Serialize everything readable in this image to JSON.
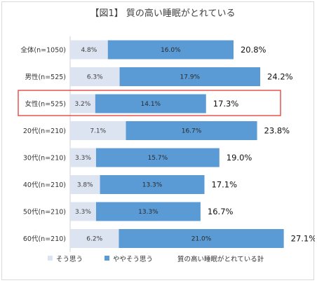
{
  "chart_data": {
    "type": "bar",
    "orientation": "horizontal",
    "stacked": true,
    "title": "【図1】 質の高い睡眠がとれている",
    "categories": [
      "全体(n=1050)",
      "男性(n=525)",
      "女性(n=525)",
      "20代(n=210)",
      "30代(n=210)",
      "40代(n=210)",
      "50代(n=210)",
      "60代(n=210)"
    ],
    "series": [
      {
        "name": "そう思う",
        "color": "#dce3f1",
        "values": [
          4.8,
          6.3,
          3.2,
          7.1,
          3.3,
          3.8,
          3.3,
          6.2
        ],
        "labels": [
          "4.8%",
          "6.3%",
          "3.2%",
          "7.1%",
          "3.3%",
          "3.8%",
          "3.3%",
          "6.2%"
        ]
      },
      {
        "name": "ややそう思う",
        "color": "#5b9bd5",
        "values": [
          16.0,
          17.9,
          14.1,
          16.7,
          15.7,
          13.3,
          13.3,
          21.0
        ],
        "labels": [
          "16.0%",
          "17.9%",
          "14.1%",
          "16.7%",
          "15.7%",
          "13.3%",
          "13.3%",
          "21.0%"
        ]
      }
    ],
    "totals": {
      "name": "質の高い睡眠がとれている計",
      "values": [
        20.8,
        24.2,
        17.3,
        23.8,
        19.0,
        17.1,
        16.7,
        27.1
      ],
      "labels": [
        "20.8%",
        "24.2%",
        "17.3%",
        "23.8%",
        "19.0%",
        "17.1%",
        "16.7%",
        "27.1%"
      ]
    },
    "highlighted_category": "女性(n=525)",
    "highlight_color": "#e53935",
    "legend_position": "bottom",
    "grid": false
  }
}
